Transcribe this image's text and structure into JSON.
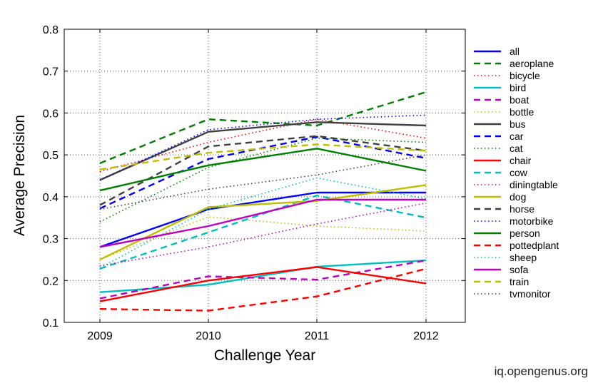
{
  "chart_data": {
    "type": "line",
    "title": "",
    "xlabel": "Challenge Year",
    "ylabel": "Average Precision",
    "x": [
      "2009",
      "2010",
      "2011",
      "2012"
    ],
    "ylim": [
      0.1,
      0.8
    ],
    "yticks": [
      "0.1",
      "0.2",
      "0.3",
      "0.4",
      "0.5",
      "0.6",
      "0.7",
      "0.8"
    ],
    "grid": true,
    "legend_position": "right",
    "series": [
      {
        "name": "all",
        "color": "#0000ff",
        "dash": "solid",
        "values": [
          0.28,
          0.37,
          0.41,
          0.41
        ]
      },
      {
        "name": "aeroplane",
        "color": "#008000",
        "dash": "dashed",
        "values": [
          0.48,
          0.585,
          0.57,
          0.65
        ]
      },
      {
        "name": "bicycle",
        "color": "#ff0000",
        "dash": "dotted",
        "values": [
          0.46,
          0.53,
          0.585,
          0.54
        ]
      },
      {
        "name": "bird",
        "color": "#00bfbf",
        "dash": "solid",
        "values": [
          0.172,
          0.19,
          0.233,
          0.248
        ]
      },
      {
        "name": "boat",
        "color": "#bf00bf",
        "dash": "dashed",
        "values": [
          0.157,
          0.21,
          0.202,
          0.248
        ]
      },
      {
        "name": "bottle",
        "color": "#bfbf00",
        "dash": "dotted",
        "values": [
          0.25,
          0.352,
          0.33,
          0.318
        ]
      },
      {
        "name": "bus",
        "color": "#404040",
        "dash": "solid",
        "values": [
          0.44,
          0.555,
          0.578,
          0.57
        ]
      },
      {
        "name": "car",
        "color": "#0000ff",
        "dash": "dashed",
        "values": [
          0.372,
          0.49,
          0.543,
          0.492
        ]
      },
      {
        "name": "cat",
        "color": "#008000",
        "dash": "dotted",
        "values": [
          0.34,
          0.47,
          0.54,
          0.53
        ]
      },
      {
        "name": "chair",
        "color": "#ff0000",
        "dash": "solid",
        "values": [
          0.15,
          0.2,
          0.232,
          0.193
        ]
      },
      {
        "name": "cow",
        "color": "#00bfbf",
        "dash": "dashed",
        "values": [
          0.228,
          0.315,
          0.403,
          0.35
        ]
      },
      {
        "name": "diningtable",
        "color": "#bf00bf",
        "dash": "dotted",
        "values": [
          0.235,
          0.28,
          0.335,
          0.385
        ]
      },
      {
        "name": "dog",
        "color": "#bfbf00",
        "dash": "solid",
        "values": [
          0.25,
          0.375,
          0.39,
          0.428
        ]
      },
      {
        "name": "horse",
        "color": "#404040",
        "dash": "dashed",
        "values": [
          0.38,
          0.52,
          0.545,
          0.51
        ]
      },
      {
        "name": "motorbike",
        "color": "#0000ff",
        "dash": "dotted",
        "values": [
          0.44,
          0.56,
          0.585,
          0.595
        ]
      },
      {
        "name": "person",
        "color": "#008000",
        "dash": "solid",
        "values": [
          0.415,
          0.475,
          0.515,
          0.462
        ]
      },
      {
        "name": "pottedplant",
        "color": "#ff0000",
        "dash": "dashed",
        "values": [
          0.132,
          0.128,
          0.162,
          0.228
        ]
      },
      {
        "name": "sheep",
        "color": "#00bfbf",
        "dash": "dotted",
        "values": [
          0.23,
          0.37,
          0.445,
          0.395
        ]
      },
      {
        "name": "sofa",
        "color": "#bf00bf",
        "dash": "solid",
        "values": [
          0.28,
          0.33,
          0.393,
          0.393
        ]
      },
      {
        "name": "train",
        "color": "#bfbf00",
        "dash": "dashed",
        "values": [
          0.465,
          0.505,
          0.525,
          0.51
        ]
      },
      {
        "name": "tvmonitor",
        "color": "#404040",
        "dash": "dotted",
        "values": [
          0.37,
          0.418,
          0.452,
          0.5
        ]
      }
    ]
  },
  "watermark": "iq.opengenus.org"
}
